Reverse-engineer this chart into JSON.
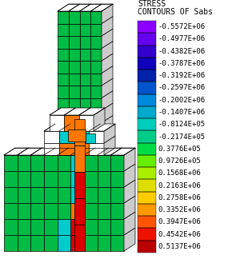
{
  "title_line1": "STRESS",
  "title_line2": "CONTOURS OF Sabs",
  "colorbar_values": [
    "-0.5572E+06",
    "-0.4977E+06",
    "-0.4382E+06",
    "-0.3787E+06",
    "-0.3192E+06",
    "-0.2597E+06",
    "-0.2002E+06",
    "-0.1407E+06",
    "-0.8124E+05",
    "-0.2174E+05",
    "0.3776E+05",
    "0.9726E+05",
    "0.1568E+06",
    "0.2163E+06",
    "0.2758E+06",
    "0.3352E+06",
    "0.3947E+06",
    "0.4542E+06",
    "0.5137E+06"
  ],
  "colorbar_colors": [
    "#8B00FF",
    "#6600EE",
    "#3300CC",
    "#1100BB",
    "#0022AA",
    "#0055CC",
    "#0088DD",
    "#00AACC",
    "#00CCBB",
    "#00CC88",
    "#00DD44",
    "#66EE00",
    "#AAEE00",
    "#DDDD00",
    "#FFCC00",
    "#FF9900",
    "#FF5500",
    "#EE1100",
    "#BB0000"
  ],
  "bg_color": "#FFFFFF",
  "font_color": "#000000",
  "mesh_color": "#000000",
  "mesh_lw": 0.5,
  "font_size": 6.5,
  "title_font_size": 7,
  "green": "#00BB44",
  "green_light": "#44CC66",
  "red": "#DD0000",
  "orange": "#FF7700",
  "cyan": "#00CCCC",
  "white": "#FFFFFF",
  "gray_side": "#CCCCCC",
  "gray_top": "#EEEEEE"
}
